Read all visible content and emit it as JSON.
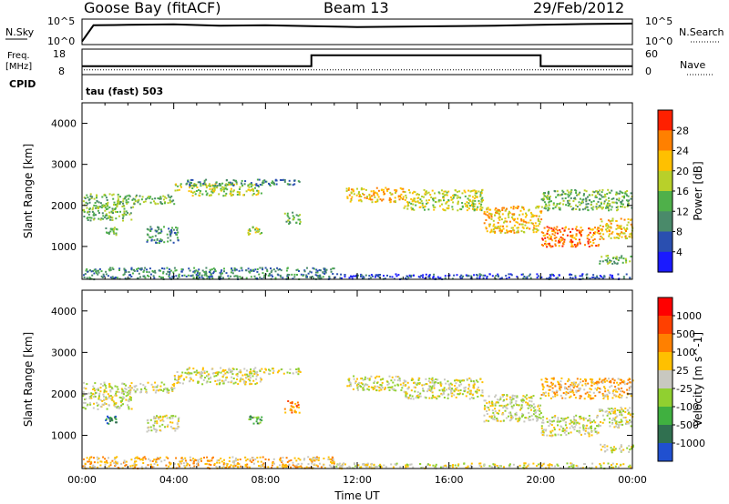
{
  "header": {
    "site": "Goose Bay (fitACF)",
    "beam": "Beam 13",
    "date": "29/Feb/2012"
  },
  "chart_data": [
    {
      "type": "line",
      "name": "noise-panel",
      "left_label": "N.Sky",
      "right_label": "N.Search",
      "left_ticks": [
        "10^5",
        "10^0"
      ],
      "right_ticks": [
        "10^5",
        "10^0"
      ],
      "x_hours": [
        0,
        0.5,
        2,
        4,
        6,
        8,
        10,
        12,
        14,
        16,
        18,
        20,
        22,
        24
      ],
      "n_sky_log": [
        0.3,
        4.0,
        4.1,
        4.2,
        3.9,
        4.0,
        3.8,
        3.6,
        3.7,
        3.8,
        3.9,
        4.1,
        4.3,
        4.4
      ],
      "n_search_log": [
        0.3,
        4.0,
        4.1,
        4.2,
        3.9,
        4.0,
        3.8,
        3.6,
        3.7,
        3.8,
        3.9,
        4.1,
        4.3,
        4.4
      ]
    },
    {
      "type": "line",
      "name": "frequency-panel",
      "left_label_line1": "Freq.",
      "left_label_line2": "[MHz]",
      "right_label": "Nave",
      "cpid_label": "CPID",
      "left_ticks": [
        "18",
        "8"
      ],
      "right_ticks": [
        "60",
        "0"
      ],
      "program": "tau (fast) 503",
      "freq_steps": [
        [
          0,
          10,
          11
        ],
        [
          10,
          20,
          16
        ],
        [
          20,
          24,
          11
        ]
      ],
      "nave": 8
    },
    {
      "type": "heatmap",
      "name": "power",
      "ylabel": "Slant Range [km]",
      "ylim": [
        200,
        4500
      ],
      "yticks": [
        1000,
        2000,
        3000,
        4000
      ],
      "xlim": [
        0,
        24
      ],
      "colorbar_label": "Power [dB]",
      "colorbar_ticks": [
        "28",
        "24",
        "20",
        "16",
        "12",
        "8",
        "4"
      ],
      "colors": [
        "#1a1aff",
        "#2a4fb0",
        "#4a8a6a",
        "#4fb04a",
        "#b8d02a",
        "#ffc000",
        "#ff8000",
        "#ff2000"
      ],
      "echo_regions": [
        {
          "t0": 0.0,
          "t1": 2.2,
          "r0": 1650,
          "r1": 2300,
          "level": 3
        },
        {
          "t0": 2.2,
          "t1": 4.0,
          "r0": 2050,
          "r1": 2300,
          "level": 3
        },
        {
          "t0": 4.0,
          "t1": 7.8,
          "r0": 2250,
          "r1": 2550,
          "level": 4
        },
        {
          "t0": 4.5,
          "t1": 9.5,
          "r0": 2500,
          "r1": 2650,
          "level": 2
        },
        {
          "t0": 1.0,
          "t1": 1.5,
          "r0": 1300,
          "r1": 1500,
          "level": 3
        },
        {
          "t0": 2.8,
          "t1": 4.2,
          "r0": 1100,
          "r1": 1500,
          "level": 2
        },
        {
          "t0": 7.2,
          "t1": 7.8,
          "r0": 1300,
          "r1": 1500,
          "level": 4
        },
        {
          "t0": 8.8,
          "t1": 9.5,
          "r0": 1550,
          "r1": 1850,
          "level": 3
        },
        {
          "t0": 11.5,
          "t1": 14.0,
          "r0": 2100,
          "r1": 2450,
          "level": 5
        },
        {
          "t0": 14.0,
          "t1": 17.5,
          "r0": 1900,
          "r1": 2400,
          "level": 4
        },
        {
          "t0": 17.5,
          "t1": 20.0,
          "r0": 1350,
          "r1": 2000,
          "level": 5
        },
        {
          "t0": 20.0,
          "t1": 22.5,
          "r0": 1000,
          "r1": 1500,
          "level": 6
        },
        {
          "t0": 20.0,
          "t1": 24.0,
          "r0": 1900,
          "r1": 2400,
          "level": 3
        },
        {
          "t0": 22.5,
          "t1": 24.0,
          "r0": 1200,
          "r1": 1700,
          "level": 5
        },
        {
          "t0": 22.5,
          "t1": 24.0,
          "r0": 600,
          "r1": 800,
          "level": 3
        },
        {
          "t0": 0.0,
          "t1": 11.0,
          "r0": 220,
          "r1": 500,
          "level": 2
        },
        {
          "t0": 11.0,
          "t1": 24.0,
          "r0": 220,
          "r1": 350,
          "level": 1
        }
      ]
    },
    {
      "type": "heatmap",
      "name": "velocity",
      "ylabel": "Slant Range [km]",
      "ylim": [
        200,
        4500
      ],
      "yticks": [
        1000,
        2000,
        3000,
        4000
      ],
      "xlim": [
        0,
        24
      ],
      "xlabel": "Time UT",
      "xticks": [
        "00:00",
        "04:00",
        "08:00",
        "12:00",
        "16:00",
        "20:00",
        "00:00"
      ],
      "colorbar_label": "Velocity [m s^-1]",
      "colorbar_ticks": [
        "1000",
        "500",
        "100",
        "25",
        "-25",
        "-100",
        "-500",
        "-1000"
      ],
      "colors": [
        "#2050d0",
        "#307050",
        "#40b040",
        "#90d030",
        "#c8c8c0",
        "#ffc000",
        "#ff8000",
        "#ff4000",
        "#ff0000"
      ],
      "echo_regions": [
        {
          "t0": 0.0,
          "t1": 2.2,
          "r0": 1650,
          "r1": 2300,
          "level": 4
        },
        {
          "t0": 2.2,
          "t1": 4.0,
          "r0": 2050,
          "r1": 2300,
          "level": 4
        },
        {
          "t0": 4.0,
          "t1": 7.8,
          "r0": 2250,
          "r1": 2550,
          "level": 4
        },
        {
          "t0": 4.5,
          "t1": 9.5,
          "r0": 2500,
          "r1": 2650,
          "level": 4
        },
        {
          "t0": 1.0,
          "t1": 1.5,
          "r0": 1300,
          "r1": 1500,
          "level": 1
        },
        {
          "t0": 2.8,
          "t1": 4.2,
          "r0": 1100,
          "r1": 1500,
          "level": 4
        },
        {
          "t0": 7.2,
          "t1": 7.8,
          "r0": 1300,
          "r1": 1500,
          "level": 2
        },
        {
          "t0": 8.8,
          "t1": 9.5,
          "r0": 1550,
          "r1": 1850,
          "level": 6
        },
        {
          "t0": 11.5,
          "t1": 14.0,
          "r0": 2100,
          "r1": 2450,
          "level": 4
        },
        {
          "t0": 14.0,
          "t1": 17.5,
          "r0": 1900,
          "r1": 2400,
          "level": 4
        },
        {
          "t0": 17.5,
          "t1": 20.0,
          "r0": 1350,
          "r1": 2000,
          "level": 4
        },
        {
          "t0": 20.0,
          "t1": 22.5,
          "r0": 1000,
          "r1": 1500,
          "level": 4
        },
        {
          "t0": 20.0,
          "t1": 24.0,
          "r0": 1900,
          "r1": 2400,
          "level": 5
        },
        {
          "t0": 22.5,
          "t1": 24.0,
          "r0": 1200,
          "r1": 1700,
          "level": 4
        },
        {
          "t0": 22.5,
          "t1": 24.0,
          "r0": 600,
          "r1": 800,
          "level": 4
        },
        {
          "t0": 0.0,
          "t1": 11.0,
          "r0": 220,
          "r1": 500,
          "level": 5
        },
        {
          "t0": 11.0,
          "t1": 24.0,
          "r0": 220,
          "r1": 350,
          "level": 4
        }
      ]
    }
  ]
}
